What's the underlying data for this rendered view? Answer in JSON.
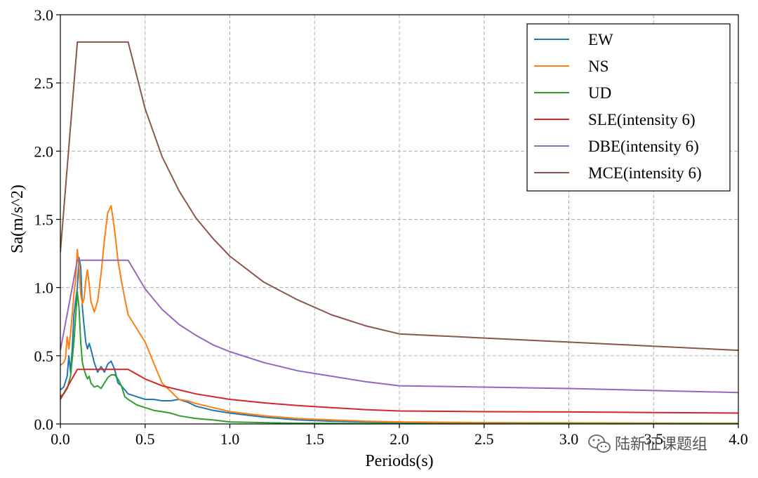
{
  "chart_data": {
    "type": "line",
    "xlabel": "Periods(s)",
    "ylabel": "Sa(m/s^2)",
    "xlim": [
      0,
      4
    ],
    "ylim": [
      0,
      3
    ],
    "xticks": [
      "0.0",
      "0.5",
      "1.0",
      "1.5",
      "2.0",
      "2.5",
      "3.0",
      "3.5",
      "4.0"
    ],
    "yticks": [
      "0.0",
      "0.5",
      "1.0",
      "1.5",
      "2.0",
      "2.5",
      "3.0"
    ],
    "grid": true,
    "legend_position": "top-right",
    "series": [
      {
        "name": "EW",
        "color": "#1f77b4",
        "x": [
          0,
          0.02,
          0.04,
          0.05,
          0.06,
          0.07,
          0.08,
          0.09,
          0.1,
          0.11,
          0.12,
          0.13,
          0.14,
          0.15,
          0.16,
          0.17,
          0.18,
          0.2,
          0.22,
          0.24,
          0.26,
          0.28,
          0.3,
          0.32,
          0.34,
          0.36,
          0.38,
          0.4,
          0.45,
          0.5,
          0.55,
          0.6,
          0.65,
          0.7,
          0.75,
          0.8,
          0.9,
          1.0,
          1.2,
          1.4,
          1.6,
          1.8,
          2.0,
          2.5,
          3.0,
          3.5,
          4.0
        ],
        "y": [
          0.25,
          0.27,
          0.35,
          0.5,
          0.38,
          0.55,
          0.8,
          0.9,
          1.0,
          1.22,
          1.15,
          0.85,
          0.72,
          0.6,
          0.55,
          0.59,
          0.55,
          0.45,
          0.38,
          0.42,
          0.38,
          0.44,
          0.46,
          0.4,
          0.3,
          0.28,
          0.25,
          0.22,
          0.2,
          0.18,
          0.18,
          0.17,
          0.17,
          0.18,
          0.16,
          0.13,
          0.1,
          0.08,
          0.05,
          0.03,
          0.02,
          0.015,
          0.01,
          0.008,
          0.006,
          0.005,
          0.004
        ]
      },
      {
        "name": "NS",
        "color": "#ff7f0e",
        "x": [
          0,
          0.02,
          0.03,
          0.04,
          0.05,
          0.06,
          0.07,
          0.08,
          0.09,
          0.1,
          0.11,
          0.12,
          0.13,
          0.14,
          0.15,
          0.16,
          0.17,
          0.18,
          0.2,
          0.22,
          0.24,
          0.26,
          0.28,
          0.3,
          0.32,
          0.34,
          0.36,
          0.38,
          0.4,
          0.45,
          0.5,
          0.55,
          0.6,
          0.65,
          0.7,
          0.75,
          0.8,
          0.9,
          1.0,
          1.2,
          1.4,
          1.6,
          1.8,
          2.0,
          2.5,
          3.0,
          3.5,
          4.0
        ],
        "y": [
          0.43,
          0.45,
          0.48,
          0.64,
          0.55,
          0.66,
          0.8,
          0.95,
          1.05,
          1.28,
          1.15,
          0.95,
          0.88,
          0.92,
          1.05,
          1.13,
          1.02,
          0.9,
          0.82,
          0.9,
          1.1,
          1.35,
          1.55,
          1.6,
          1.42,
          1.2,
          1.05,
          0.92,
          0.8,
          0.7,
          0.6,
          0.45,
          0.3,
          0.24,
          0.18,
          0.17,
          0.15,
          0.12,
          0.09,
          0.06,
          0.04,
          0.03,
          0.02,
          0.015,
          0.01,
          0.008,
          0.006,
          0.005
        ]
      },
      {
        "name": "UD",
        "color": "#2ca02c",
        "x": [
          0,
          0.02,
          0.04,
          0.06,
          0.08,
          0.09,
          0.1,
          0.11,
          0.12,
          0.13,
          0.14,
          0.15,
          0.16,
          0.17,
          0.18,
          0.2,
          0.22,
          0.24,
          0.26,
          0.28,
          0.3,
          0.32,
          0.34,
          0.36,
          0.38,
          0.4,
          0.45,
          0.5,
          0.55,
          0.6,
          0.65,
          0.7,
          0.75,
          0.8,
          0.9,
          1.0,
          1.2,
          1.4,
          2.0,
          3.0,
          4.0
        ],
        "y": [
          0.2,
          0.22,
          0.26,
          0.35,
          0.6,
          0.78,
          0.97,
          0.85,
          0.6,
          0.45,
          0.4,
          0.36,
          0.33,
          0.35,
          0.3,
          0.27,
          0.28,
          0.26,
          0.3,
          0.34,
          0.36,
          0.36,
          0.33,
          0.28,
          0.2,
          0.18,
          0.14,
          0.12,
          0.1,
          0.09,
          0.08,
          0.06,
          0.05,
          0.04,
          0.03,
          0.015,
          0.01,
          0.005,
          0.002,
          0.002,
          0.002
        ]
      },
      {
        "name": "SLE(intensity 6)",
        "color": "#d62728",
        "x": [
          0,
          0.05,
          0.1,
          0.2,
          0.3,
          0.4,
          0.5,
          0.6,
          0.7,
          0.8,
          0.9,
          1.0,
          1.2,
          1.4,
          1.6,
          1.8,
          2.0,
          2.5,
          3.0,
          3.5,
          4.0
        ],
        "y": [
          0.18,
          0.29,
          0.4,
          0.4,
          0.4,
          0.4,
          0.33,
          0.28,
          0.25,
          0.22,
          0.2,
          0.18,
          0.155,
          0.135,
          0.12,
          0.105,
          0.095,
          0.09,
          0.088,
          0.084,
          0.08
        ]
      },
      {
        "name": "DBE(intensity 6)",
        "color": "#9467bd",
        "x": [
          0,
          0.05,
          0.1,
          0.2,
          0.3,
          0.4,
          0.5,
          0.6,
          0.7,
          0.8,
          0.9,
          1.0,
          1.2,
          1.4,
          1.6,
          1.8,
          2.0,
          2.5,
          3.0,
          3.5,
          4.0
        ],
        "y": [
          0.54,
          0.87,
          1.2,
          1.2,
          1.2,
          1.2,
          0.99,
          0.84,
          0.73,
          0.65,
          0.58,
          0.53,
          0.45,
          0.39,
          0.35,
          0.31,
          0.28,
          0.27,
          0.26,
          0.245,
          0.23
        ]
      },
      {
        "name": "MCE(intensity 6)",
        "color": "#8c564b",
        "x": [
          0,
          0.05,
          0.1,
          0.2,
          0.3,
          0.4,
          0.5,
          0.6,
          0.7,
          0.8,
          0.9,
          1.0,
          1.2,
          1.4,
          1.6,
          1.8,
          2.0,
          2.5,
          3.0,
          3.5,
          4.0
        ],
        "y": [
          1.26,
          2.03,
          2.8,
          2.8,
          2.8,
          2.8,
          2.31,
          1.96,
          1.71,
          1.51,
          1.36,
          1.23,
          1.04,
          0.91,
          0.8,
          0.72,
          0.66,
          0.63,
          0.6,
          0.57,
          0.54
        ]
      }
    ]
  },
  "watermark": {
    "text": "陆新征课题组",
    "icon": "wechat-icon"
  }
}
